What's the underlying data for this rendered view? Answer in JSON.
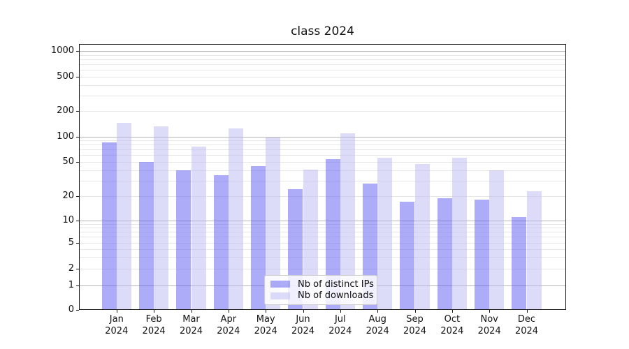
{
  "chart_data": {
    "type": "bar",
    "title": "class 2024",
    "categories": [
      "Jan 2024",
      "Feb 2024",
      "Mar 2024",
      "Apr 2024",
      "May 2024",
      "Jun 2024",
      "Jul 2024",
      "Aug 2024",
      "Sep 2024",
      "Oct 2024",
      "Nov 2024",
      "Dec 2024"
    ],
    "series": [
      {
        "name": "Nb of distinct IPs",
        "color": "#acacf8",
        "values": [
          85,
          50,
          40,
          35,
          45,
          24,
          54,
          28,
          17,
          19,
          18,
          11
        ]
      },
      {
        "name": "Nb of downloads",
        "color": "#dcdcf8",
        "values": [
          145,
          133,
          76,
          124,
          97,
          41,
          108,
          56,
          47,
          56,
          40,
          23
        ]
      }
    ],
    "xlabel": "",
    "ylabel": "",
    "yscale": "symlog",
    "yticks": [
      0,
      1,
      2,
      5,
      10,
      20,
      50,
      100,
      200,
      500,
      1000
    ],
    "ylim": [
      0,
      1200
    ],
    "grid": true,
    "gridline_major_color": "#b4b4b4",
    "gridline_minor_color": "#e7e7e7",
    "legend_position": "lower center"
  }
}
